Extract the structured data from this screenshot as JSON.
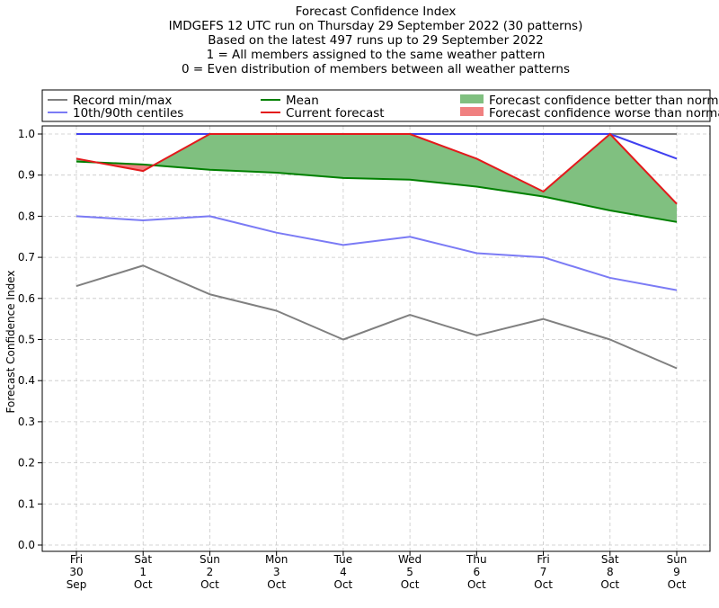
{
  "chart_data": {
    "type": "line",
    "title_lines": [
      "Forecast Confidence Index",
      "IMDGEFS 12 UTC run on Thursday 29 September 2022 (30 patterns)",
      "Based on the latest 497 runs up to 29 September 2022",
      "1 = All members assigned to the same weather pattern",
      "0 = Even distribution of members between all weather patterns"
    ],
    "ylabel": "Forecast Confidence Index",
    "xlabel": "",
    "ylim": [
      0.0,
      1.0
    ],
    "yticks": [
      "0.0",
      "0.1",
      "0.2",
      "0.3",
      "0.4",
      "0.5",
      "0.6",
      "0.7",
      "0.8",
      "0.9",
      "1.0"
    ],
    "grid": true,
    "legend_position": "top",
    "categories": [
      [
        "Fri",
        "30",
        "Sep"
      ],
      [
        "Sat",
        "1",
        "Oct"
      ],
      [
        "Sun",
        "2",
        "Oct"
      ],
      [
        "Mon",
        "3",
        "Oct"
      ],
      [
        "Tue",
        "4",
        "Oct"
      ],
      [
        "Wed",
        "5",
        "Oct"
      ],
      [
        "Thu",
        "6",
        "Oct"
      ],
      [
        "Fri",
        "7",
        "Oct"
      ],
      [
        "Sat",
        "8",
        "Oct"
      ],
      [
        "Sun",
        "9",
        "Oct"
      ]
    ],
    "legend": [
      {
        "label": "Record min/max",
        "color": "#808080",
        "kind": "line"
      },
      {
        "label": "10th/90th centiles",
        "color": "#7b7bf5",
        "kind": "line"
      },
      {
        "label": "Mean",
        "color": "#008000",
        "kind": "line"
      },
      {
        "label": "Current forecast",
        "color": "#e31a1c",
        "kind": "line"
      },
      {
        "label": "Forecast confidence better than normal",
        "color": "#80c080",
        "kind": "patch"
      },
      {
        "label": "Forecast confidence worse than normal",
        "color": "#f08080",
        "kind": "patch"
      }
    ],
    "series": [
      {
        "name": "Record min",
        "color": "#808080",
        "values": [
          0.63,
          0.68,
          0.61,
          0.57,
          0.5,
          0.56,
          0.51,
          0.55,
          0.5,
          0.43
        ]
      },
      {
        "name": "Record max",
        "color": "#808080",
        "values": [
          1.0,
          1.0,
          1.0,
          1.0,
          1.0,
          1.0,
          1.0,
          1.0,
          1.0,
          1.0
        ]
      },
      {
        "name": "10th centile",
        "color": "#7b7bf5",
        "values": [
          0.8,
          0.79,
          0.8,
          0.76,
          0.73,
          0.75,
          0.71,
          0.7,
          0.65,
          0.62
        ]
      },
      {
        "name": "90th centile",
        "color": "#4040f0",
        "values": [
          1.0,
          1.0,
          1.0,
          1.0,
          1.0,
          1.0,
          1.0,
          1.0,
          1.0,
          0.94
        ]
      },
      {
        "name": "Mean",
        "color": "#008000",
        "values": [
          0.933,
          0.926,
          0.913,
          0.906,
          0.893,
          0.889,
          0.872,
          0.848,
          0.814,
          0.786
        ]
      },
      {
        "name": "Current forecast",
        "color": "#e31a1c",
        "values": [
          0.94,
          0.91,
          1.0,
          1.0,
          1.0,
          1.0,
          0.94,
          0.86,
          1.0,
          0.83
        ]
      }
    ]
  }
}
